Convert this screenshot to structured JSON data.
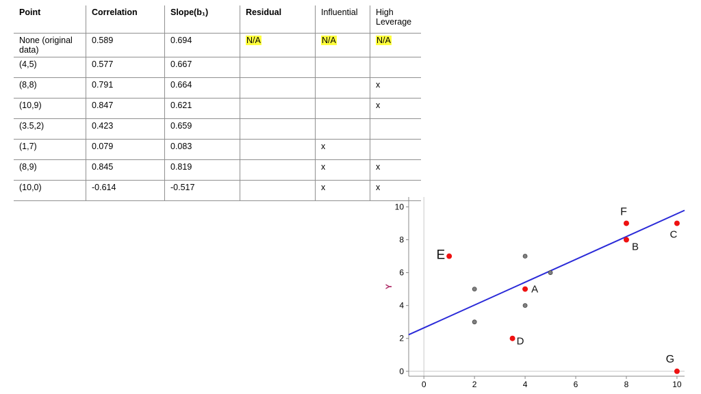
{
  "table": {
    "headers": [
      "Point",
      "Correlation",
      "Slope(b₁)",
      "Residual",
      "Influential",
      "High Leverage"
    ],
    "rows": [
      [
        "None (original data)",
        "0.589",
        "0.694",
        "N/A",
        "N/A",
        "N/A"
      ],
      [
        "(4,5)",
        "0.577",
        "0.667",
        "",
        "",
        ""
      ],
      [
        "(8,8)",
        "0.791",
        "0.664",
        "",
        "",
        "x"
      ],
      [
        "(10,9)",
        "0.847",
        "0.621",
        "",
        "",
        "x"
      ],
      [
        "(3.5,2)",
        "0.423",
        "0.659",
        "",
        "",
        ""
      ],
      [
        "(1,7)",
        "0.079",
        "0.083",
        "",
        "x",
        ""
      ],
      [
        "(8,9)",
        "0.845",
        "0.819",
        "",
        "x",
        "x"
      ],
      [
        "(10,0)",
        "-0.614",
        "-0.517",
        "",
        "x",
        "x"
      ]
    ],
    "highlight_color": "#ffff3d"
  },
  "chart_data": {
    "type": "scatter",
    "ylabel": "Y",
    "xlim": [
      -0.6,
      10.3
    ],
    "ylim": [
      -0.3,
      10.6
    ],
    "x_ticks": [
      "0",
      "2",
      "4",
      "6",
      "8",
      "10"
    ],
    "y_ticks": [
      "0",
      "2",
      "4",
      "6",
      "8",
      "10"
    ],
    "series": [
      {
        "points": [
          [
            2,
            5
          ],
          [
            2,
            3
          ],
          [
            4,
            7
          ],
          [
            4,
            4
          ],
          [
            5,
            6
          ]
        ],
        "color": "#808080"
      },
      {
        "points": [
          {
            "label": "A",
            "x": 4,
            "y": 5
          },
          {
            "label": "B",
            "x": 8,
            "y": 8
          },
          {
            "label": "C",
            "x": 10,
            "y": 9
          },
          {
            "label": "D",
            "x": 3.5,
            "y": 2
          },
          {
            "label": "E",
            "x": 1,
            "y": 7
          },
          {
            "label": "F",
            "x": 8,
            "y": 9
          },
          {
            "label": "G",
            "x": 10,
            "y": 0
          }
        ],
        "color": "#ee1111"
      }
    ],
    "regression_line": {
      "intercept": 2.64,
      "slope": 0.694,
      "color": "#2a2ad8"
    },
    "axis_color": "#888888"
  }
}
